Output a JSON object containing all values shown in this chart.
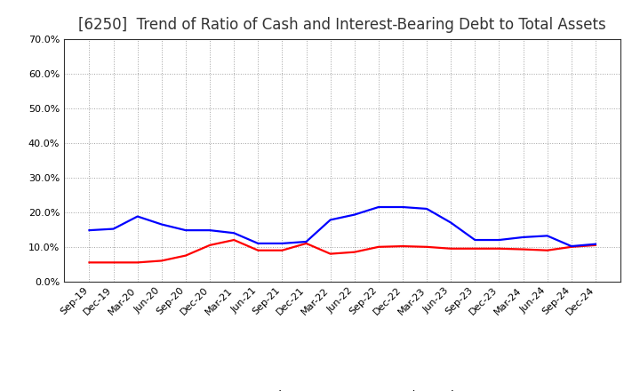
{
  "title": "[6250]  Trend of Ratio of Cash and Interest-Bearing Debt to Total Assets",
  "x_labels": [
    "Sep-19",
    "Dec-19",
    "Mar-20",
    "Jun-20",
    "Sep-20",
    "Dec-20",
    "Mar-21",
    "Jun-21",
    "Sep-21",
    "Dec-21",
    "Mar-22",
    "Jun-22",
    "Sep-22",
    "Dec-22",
    "Mar-23",
    "Jun-23",
    "Sep-23",
    "Dec-23",
    "Mar-24",
    "Jun-24",
    "Sep-24",
    "Dec-24"
  ],
  "cash": [
    0.055,
    0.055,
    0.055,
    0.06,
    0.075,
    0.105,
    0.12,
    0.09,
    0.09,
    0.11,
    0.08,
    0.085,
    0.1,
    0.102,
    0.1,
    0.095,
    0.095,
    0.095,
    0.093,
    0.09,
    0.1,
    0.105
  ],
  "interest_bearing_debt": [
    0.148,
    0.152,
    0.188,
    0.165,
    0.148,
    0.148,
    0.14,
    0.11,
    0.11,
    0.115,
    0.178,
    0.193,
    0.215,
    0.215,
    0.21,
    0.17,
    0.12,
    0.12,
    0.128,
    0.132,
    0.102,
    0.108
  ],
  "cash_color": "#ff0000",
  "debt_color": "#0000ff",
  "cash_label": "Cash",
  "debt_label": "Interest-Bearing Debt",
  "ylim": [
    0.0,
    0.7
  ],
  "yticks": [
    0.0,
    0.1,
    0.2,
    0.3,
    0.4,
    0.5,
    0.6,
    0.7
  ],
  "background_color": "#ffffff",
  "grid_color": "#999999",
  "title_fontsize": 12,
  "legend_fontsize": 9.5,
  "tick_fontsize": 8,
  "line_width": 1.6
}
